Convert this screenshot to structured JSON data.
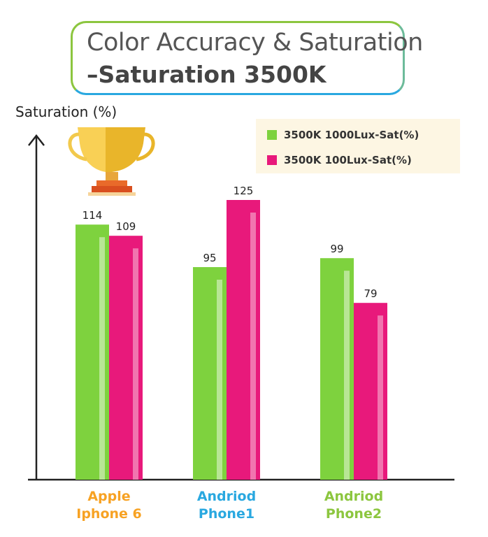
{
  "title": {
    "line1": "Color Accuracy & Saturation",
    "line2": "–Saturation 3500K"
  },
  "colors": {
    "green": "#7ed23e",
    "pink": "#e8197b",
    "orange": "#f7a223",
    "blue": "#29a8e0",
    "olive": "#8cc63f"
  },
  "trophy_icon": "trophy-icon",
  "chart_data": {
    "type": "bar",
    "title": "Color Accuracy & Saturation –Saturation 3500K",
    "ylabel": "Saturation (%)",
    "xlabel": "",
    "ylim": [
      0,
      140
    ],
    "grid": false,
    "legend_position": "top-right",
    "categories": [
      "Apple Iphone 6",
      "Andriod Phone1",
      "Andriod Phone2"
    ],
    "category_lines": [
      [
        "Apple",
        "Iphone 6"
      ],
      [
        "Andriod",
        "Phone1"
      ],
      [
        "Andriod",
        "Phone2"
      ]
    ],
    "category_colors": [
      "#f7a223",
      "#29a8e0",
      "#8cc63f"
    ],
    "series": [
      {
        "name": "3500K 1000Lux-Sat(%)",
        "color": "#7ed23e",
        "values": [
          114,
          95,
          99
        ]
      },
      {
        "name": "3500K 100Lux-Sat(%)",
        "color": "#e8197b",
        "values": [
          109,
          125,
          79
        ]
      }
    ]
  }
}
